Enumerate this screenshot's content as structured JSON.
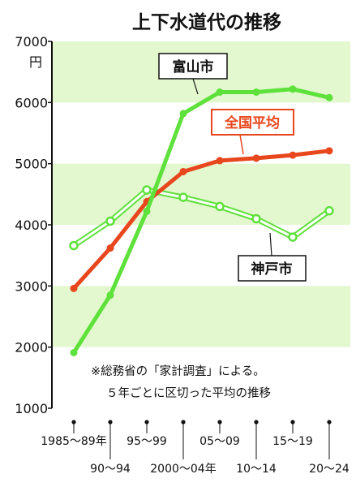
{
  "title": "上下水道代の推移",
  "unit": "円",
  "note": [
    "※総務省の「家計調査」による。",
    "５年ごとに区切った平均の推移"
  ],
  "colors": {
    "toyama": "#5ee13a",
    "national": "#e8461c",
    "kobe": "#5ee13a",
    "band": "#e3f8cf",
    "axis": "#111111"
  },
  "chart_data": {
    "type": "line",
    "title": "上下水道代の推移",
    "ylabel": "円",
    "ylim": [
      1000,
      7000
    ],
    "yticks": [
      "1000",
      "2000",
      "3000",
      "4000",
      "5000",
      "6000",
      "7000"
    ],
    "categories": [
      "1985～89年",
      "90～94",
      "95～99",
      "2000～04年",
      "05～09",
      "10～14",
      "15～19",
      "20～24"
    ],
    "series": [
      {
        "name": "富山市",
        "values": [
          1910,
          2850,
          4220,
          5820,
          6170,
          6170,
          6220,
          6080
        ]
      },
      {
        "name": "全国平均",
        "values": [
          2960,
          3620,
          4380,
          4870,
          5050,
          5090,
          5140,
          5210
        ]
      },
      {
        "name": "神戸市",
        "values": [
          3660,
          4060,
          4570,
          4450,
          4300,
          4100,
          3800,
          4230
        ]
      }
    ]
  }
}
